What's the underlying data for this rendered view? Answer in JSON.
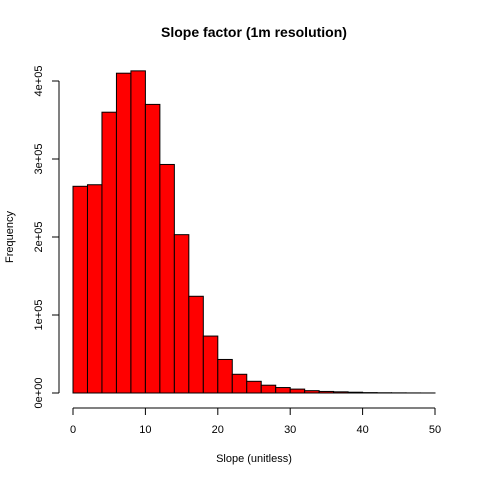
{
  "chart_data": {
    "type": "bar",
    "title": "Slope factor (1m resolution)",
    "xlabel": "Slope (unitless)",
    "ylabel": "Frequency",
    "xlim": [
      0,
      50
    ],
    "ylim": [
      0,
      410000
    ],
    "grid": false,
    "bar_color": "#FF0000",
    "bar_edge_color": "#000000",
    "bin_width": 2,
    "bin_edges": [
      0,
      2,
      4,
      6,
      8,
      10,
      12,
      14,
      16,
      18,
      20,
      22,
      24,
      26,
      28,
      30,
      32,
      34,
      36,
      38,
      40,
      42,
      44,
      46,
      48,
      50
    ],
    "values": [
      265000,
      267000,
      360000,
      410000,
      413000,
      370000,
      293000,
      203000,
      124000,
      73000,
      43000,
      24000,
      15000,
      10000,
      7000,
      5000,
      3000,
      2000,
      1500,
      1000,
      500,
      300,
      200,
      100,
      50
    ],
    "x_ticks": [
      0,
      10,
      20,
      30,
      40,
      50
    ],
    "x_tick_labels": [
      "0",
      "10",
      "20",
      "30",
      "40",
      "50"
    ],
    "y_ticks": [
      0,
      100000,
      200000,
      300000,
      400000
    ],
    "y_tick_labels": [
      "0e+00",
      "1e+05",
      "2e+05",
      "3e+05",
      "4e+05"
    ]
  }
}
